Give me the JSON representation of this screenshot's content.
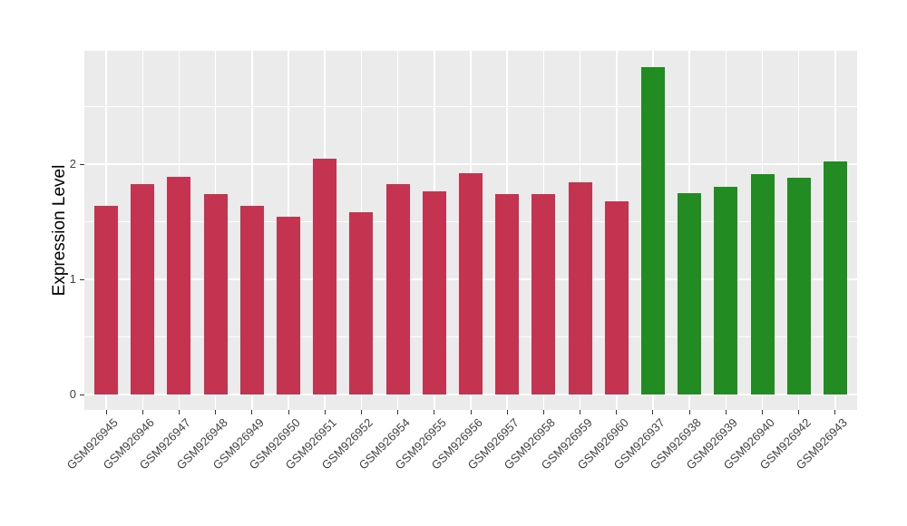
{
  "chart_data": {
    "type": "bar",
    "title": "",
    "xlabel": "",
    "ylabel": "Expression Level",
    "ylim": [
      -0.13,
      2.98
    ],
    "yticks": [
      {
        "value": 0,
        "label": "0"
      },
      {
        "value": 1,
        "label": "1"
      },
      {
        "value": 2,
        "label": "2"
      }
    ],
    "grid": {
      "major_y": [
        0,
        1,
        2
      ],
      "minor_y": [
        0.5,
        1.5,
        2.5
      ],
      "vertical_at_each_category": true
    },
    "legend_position": "none",
    "series": [
      {
        "name": "group-crimson",
        "color": "#C4334F",
        "categories": [
          "GSM926945",
          "GSM926946",
          "GSM926947",
          "GSM926948",
          "GSM926949",
          "GSM926950",
          "GSM926951",
          "GSM926952",
          "GSM926954",
          "GSM926955",
          "GSM926956",
          "GSM926957",
          "GSM926958",
          "GSM926959",
          "GSM926960"
        ],
        "values": [
          1.64,
          1.83,
          1.89,
          1.74,
          1.64,
          1.54,
          2.05,
          1.58,
          1.83,
          1.76,
          1.92,
          1.74,
          1.74,
          1.84,
          1.68
        ]
      },
      {
        "name": "group-green",
        "color": "#228B22",
        "categories": [
          "GSM926937",
          "GSM926938",
          "GSM926939",
          "GSM926940",
          "GSM926942",
          "GSM926943"
        ],
        "values": [
          2.84,
          1.75,
          1.8,
          1.91,
          1.88,
          2.02
        ]
      }
    ],
    "style": {
      "panel_background": "#EBEBEB",
      "gridline_color": "#FFFFFF",
      "tick_color": "#333333",
      "axis_text_color": "#424242",
      "axis_title_color": "#000000",
      "figure_background": "#FFFFFF"
    }
  }
}
